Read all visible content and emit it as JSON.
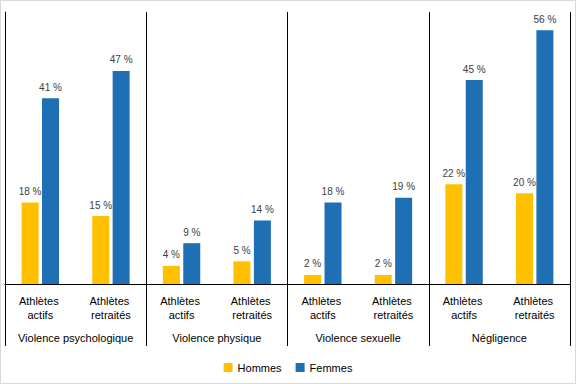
{
  "chart_data": {
    "type": "bar",
    "categories": [
      "Athlètes actifs",
      "Athlètes retraités",
      "Athlètes actifs",
      "Athlètes retraités",
      "Athlètes actifs",
      "Athlètes retraités",
      "Athlètes actifs",
      "Athlètes retraités"
    ],
    "group": [
      "Violence psychologique",
      "Violence psychologique",
      "Violence physique",
      "Violence physique",
      "Violence sexuelle",
      "Violence sexuelle",
      "Négligence",
      "Négligence"
    ],
    "series": [
      {
        "name": "Hommes",
        "color": "#FFC000",
        "values": [
          18,
          15,
          4,
          5,
          2,
          2,
          22,
          20
        ],
        "value_labels": [
          "18 %",
          "15 %",
          "4 %",
          "5 %",
          "2 %",
          "2 %",
          "22 %",
          "20 %"
        ]
      },
      {
        "name": "Femmes",
        "color": "#1F6FB4",
        "values": [
          41,
          47,
          9,
          14,
          18,
          19,
          45,
          56
        ],
        "value_labels": [
          "41 %",
          "47 %",
          "9 %",
          "14 %",
          "18 %",
          "19 %",
          "45 %",
          "56 %"
        ]
      }
    ],
    "ylim": [
      0,
      60
    ],
    "grid": false,
    "legend": "bottom",
    "data_labels": true,
    "tick_labels": "x"
  }
}
